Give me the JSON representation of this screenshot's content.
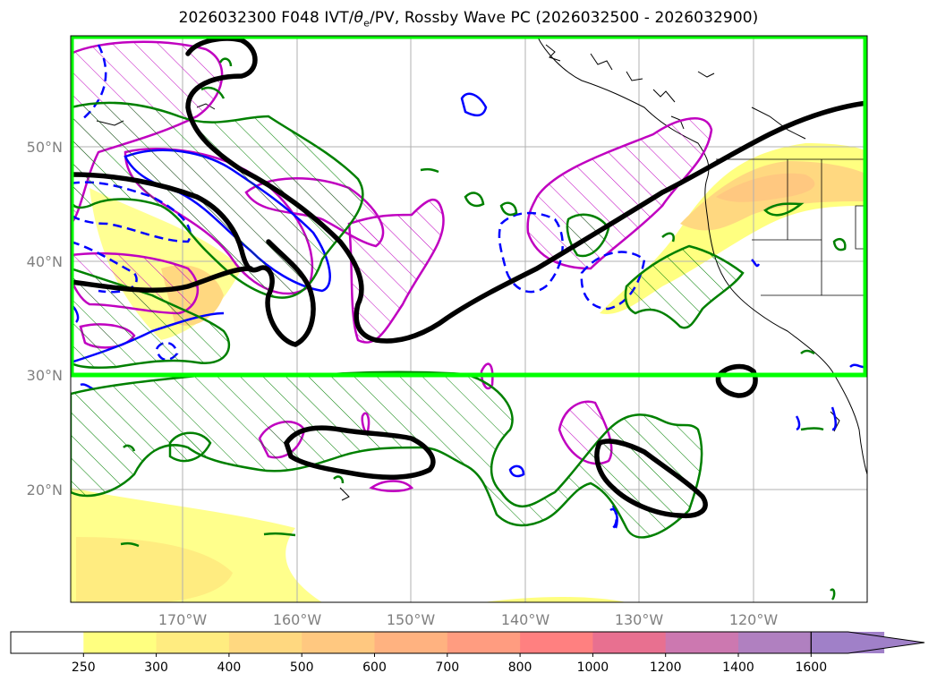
{
  "map": {
    "title_prefix": "2026032300 F048 IVT/",
    "title_theta": "θ",
    "title_sub": "e",
    "title_suffix": "/PV, Rossby Wave PC (2026032500 - 2026032900)",
    "lat_labels": [
      "50°N",
      "40°N",
      "30°N",
      "20°N"
    ],
    "lon_labels": [
      "170°W",
      "160°W",
      "150°W",
      "140°W",
      "130°W",
      "120°W"
    ],
    "region_box_color": "#00ff00",
    "legend_colorbar": {
      "ticks": [
        "250",
        "300",
        "400",
        "500",
        "600",
        "700",
        "800",
        "1000",
        "1200",
        "1400",
        "1600"
      ],
      "colors": [
        "#ffffff",
        "#ffff80",
        "#ffec80",
        "#ffd880",
        "#ffc880",
        "#ffb280",
        "#ff9c80",
        "#ff8080",
        "#e87090",
        "#cc78b0",
        "#b080c0",
        "#a080c8"
      ]
    },
    "contour_colors": {
      "pv": "#000000",
      "positive_theta": "#008000",
      "rossby_positive": "#c000c0",
      "rossby_negative": "#0000ff"
    }
  }
}
